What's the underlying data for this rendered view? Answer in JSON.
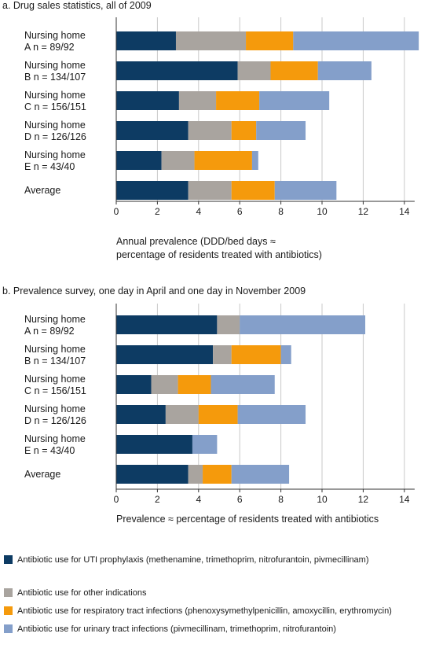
{
  "colors": {
    "uti_prophylaxis": "#0d3b63",
    "other_indications": "#a9a49f",
    "respiratory": "#f59a0c",
    "urinary": "#849fca",
    "grid": "#c9c9c9"
  },
  "chart_data": [
    {
      "type": "bar",
      "orientation": "horizontal",
      "stacked": true,
      "title": "a. Drug sales statistics, all of 2009",
      "categories": [
        [
          "Nursing home",
          "A  n = 89/92"
        ],
        [
          "Nursing home",
          "B  n = 134/107"
        ],
        [
          "Nursing home",
          "C  n = 156/151"
        ],
        [
          "Nursing home",
          "D  n = 126/126"
        ],
        [
          "Nursing home",
          "E  n = 43/40"
        ],
        [
          "Average"
        ]
      ],
      "series": [
        {
          "key": "uti_prophylaxis",
          "values": [
            2.9,
            5.9,
            3.05,
            3.5,
            2.2,
            3.5
          ]
        },
        {
          "key": "other_indications",
          "values": [
            3.4,
            1.6,
            1.8,
            2.1,
            1.6,
            2.1
          ]
        },
        {
          "key": "respiratory",
          "values": [
            2.3,
            2.3,
            2.1,
            1.2,
            2.8,
            2.1
          ]
        },
        {
          "key": "urinary",
          "values": [
            6.1,
            2.6,
            3.4,
            2.4,
            0.3,
            3.0
          ]
        }
      ],
      "xlim": [
        0,
        14.5
      ],
      "xticks": [
        0,
        2,
        4,
        6,
        8,
        10,
        12,
        14
      ],
      "xlabel": [
        "Annual prevalence (DDD/bed days ≈",
        "percentage of residents treated with antibiotics)"
      ]
    },
    {
      "type": "bar",
      "orientation": "horizontal",
      "stacked": true,
      "title": "b. Prevalence survey, one day in April and one day in November 2009",
      "categories": [
        [
          "Nursing home",
          "A  n = 89/92"
        ],
        [
          "Nursing home",
          "B  n = 134/107"
        ],
        [
          "Nursing home",
          "C  n = 156/151"
        ],
        [
          "Nursing home",
          "D  n = 126/126"
        ],
        [
          "Nursing home",
          "E  n = 43/40"
        ],
        [
          "Average"
        ]
      ],
      "series": [
        {
          "key": "uti_prophylaxis",
          "values": [
            4.9,
            4.7,
            1.7,
            2.4,
            3.7,
            3.5
          ]
        },
        {
          "key": "other_indications",
          "values": [
            1.1,
            0.9,
            1.3,
            1.6,
            0.0,
            0.7
          ]
        },
        {
          "key": "respiratory",
          "values": [
            0.0,
            2.4,
            1.6,
            1.9,
            0.0,
            1.4
          ]
        },
        {
          "key": "urinary",
          "values": [
            6.1,
            0.5,
            3.1,
            3.3,
            1.2,
            2.8
          ]
        }
      ],
      "xlim": [
        0,
        14.5
      ],
      "xticks": [
        0,
        2,
        4,
        6,
        8,
        10,
        12,
        14
      ],
      "xlabel": [
        "Prevalence ≈  percentage of residents treated with antibiotics"
      ]
    }
  ],
  "legend": [
    {
      "key": "uti_prophylaxis",
      "label": "Antibiotic use for UTI prophylaxis (methenamine, trimethoprim, nitrofurantoin, pivmecillinam)"
    },
    {
      "key": "other_indications",
      "label": "Antibiotic use for other indications"
    },
    {
      "key": "respiratory",
      "label": "Antibiotic use for respiratory tract infections (phenoxysymethylpenicillin, amoxycillin, erythromycin)"
    },
    {
      "key": "urinary",
      "label": "Antibiotic use for urinary tract infections (pivmecillinam, trimethoprim, nitrofurantoin)"
    }
  ]
}
